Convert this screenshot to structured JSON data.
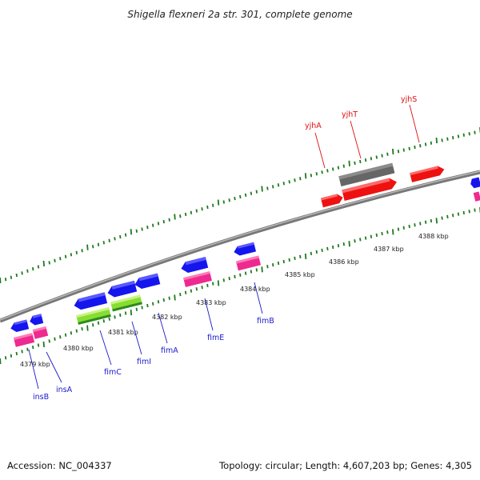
{
  "title": "Shigella flexneri 2a str. 301, complete genome",
  "footer": {
    "accession": "Accession: NC_004337",
    "summary": "Topology: circular; Length: 4,607,203 bp; Genes: 4,305"
  },
  "scale_labels": [
    "4379 kbp",
    "4380 kbp",
    "4381 kbp",
    "4382 kbp",
    "4383 kbp",
    "4384 kbp",
    "4385 kbp",
    "4386 kbp",
    "4387 kbp",
    "4388 kbp"
  ],
  "genes": [
    {
      "name": "insB",
      "strand": "reverse"
    },
    {
      "name": "insA",
      "strand": "reverse"
    },
    {
      "name": "fimC",
      "strand": "reverse"
    },
    {
      "name": "fimI",
      "strand": "reverse"
    },
    {
      "name": "fimA",
      "strand": "reverse"
    },
    {
      "name": "fimE",
      "strand": "reverse"
    },
    {
      "name": "fimB",
      "strand": "reverse"
    },
    {
      "name": "yjhA",
      "strand": "forward"
    },
    {
      "name": "yjhT",
      "strand": "forward"
    },
    {
      "name": "yjhS",
      "strand": "forward"
    }
  ],
  "colors": {
    "reverse_gene_label": "#1a1acc",
    "forward_gene_label": "#dd1111",
    "cds_blue": "#1515ee",
    "feature_pink": "#ee2a90",
    "feature_green": "#88dd33",
    "cds_red": "#ee1111",
    "pseudo_gray": "#666666",
    "tick_green": "#1e7a1e",
    "backbone": "#8a8a8a"
  }
}
